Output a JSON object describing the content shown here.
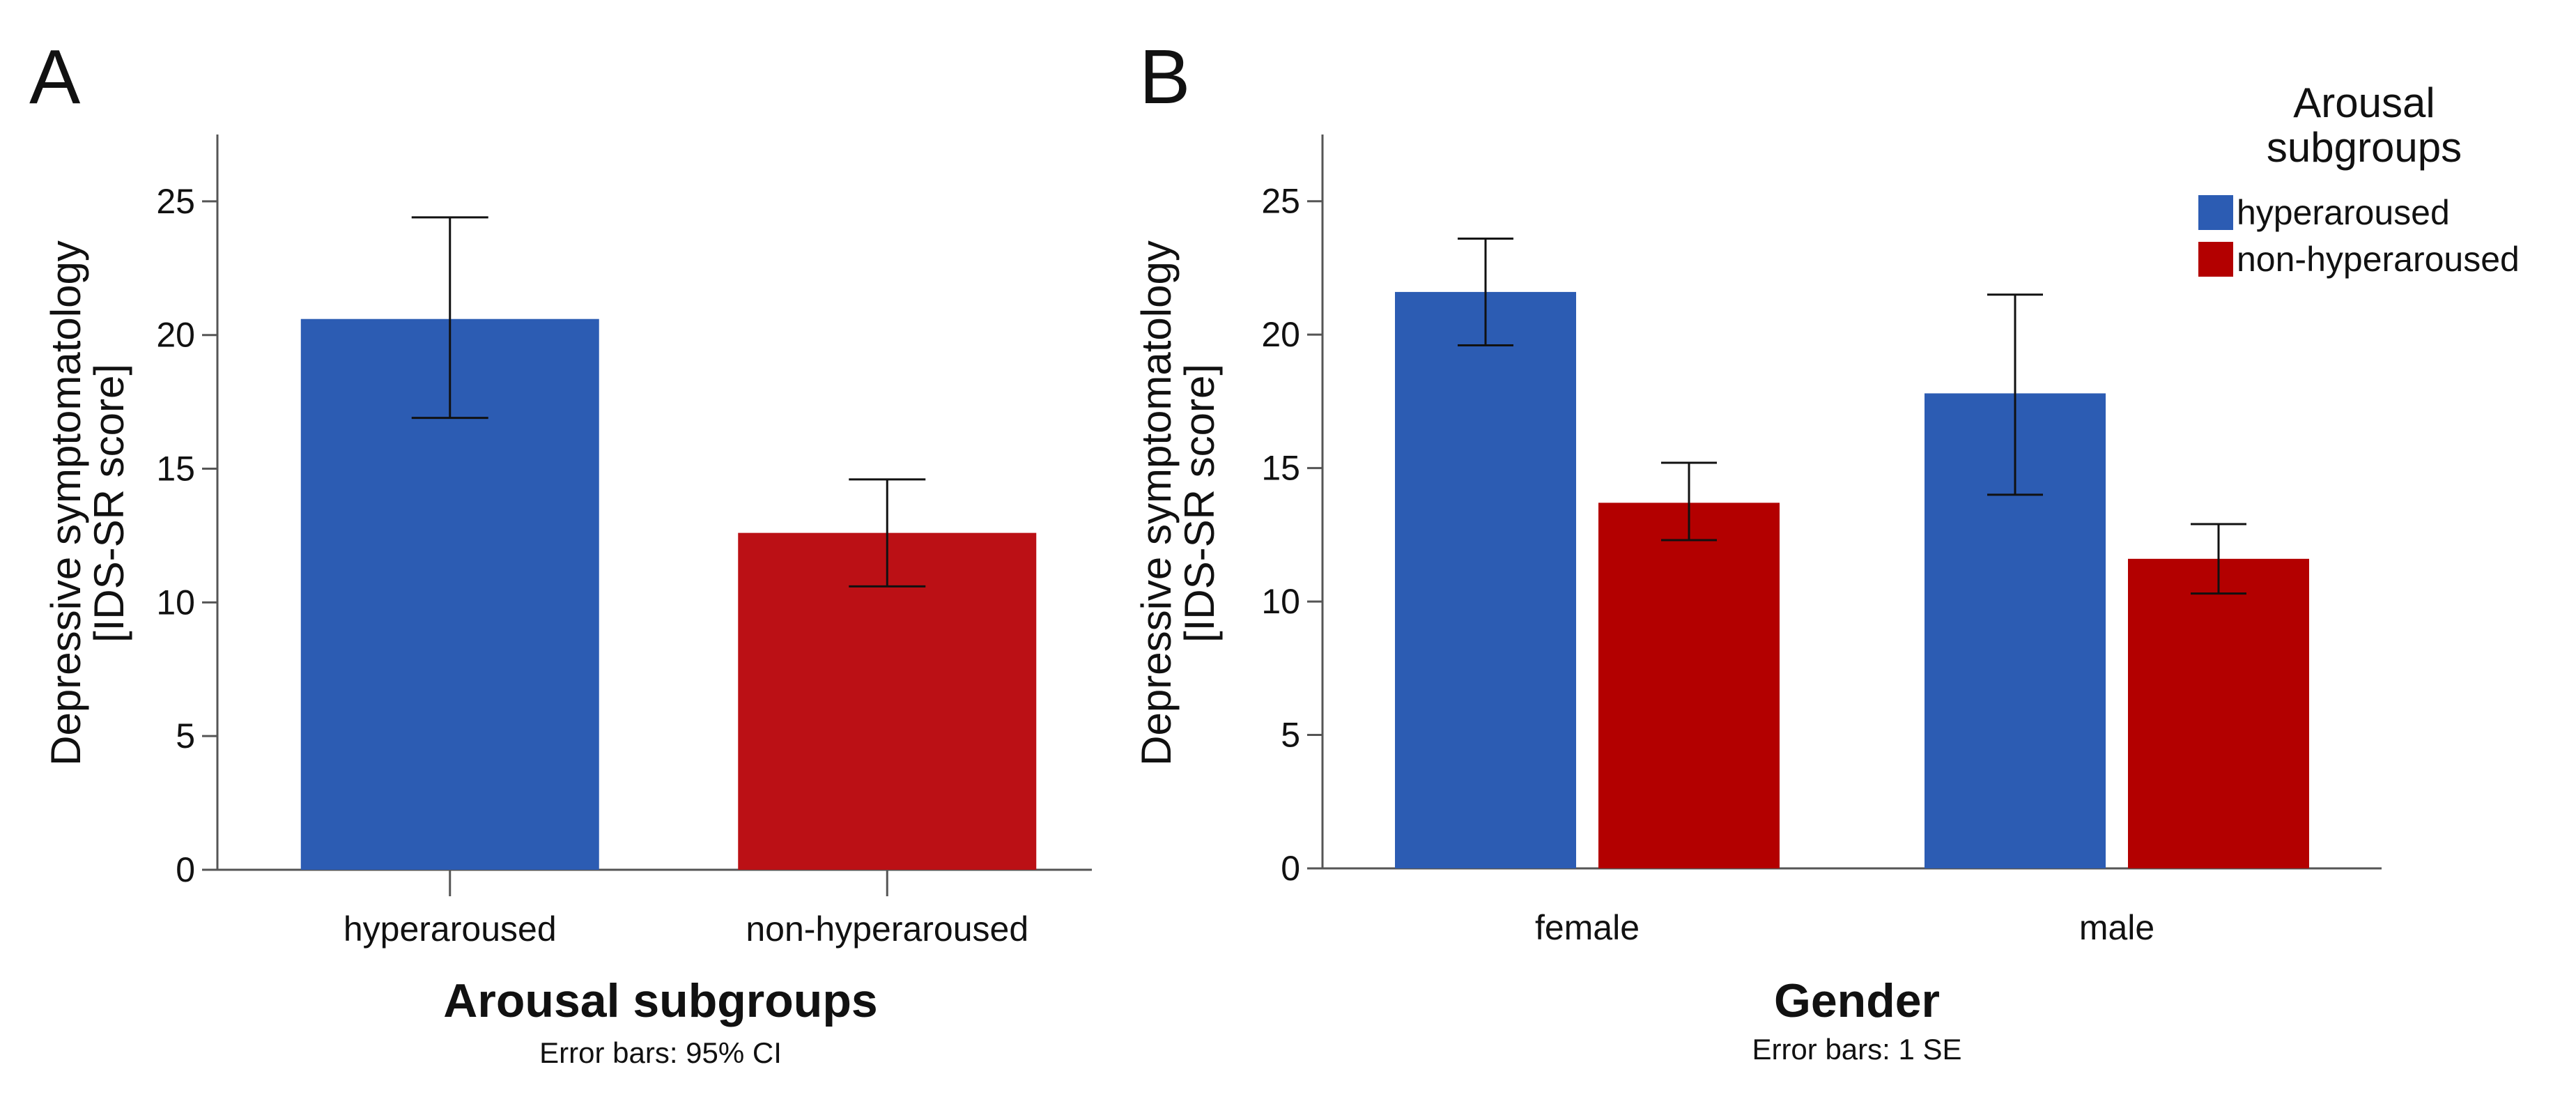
{
  "chart_data": [
    {
      "type": "bar",
      "panel": "A",
      "categories": [
        "hyperaroused",
        "non-hyperaroused"
      ],
      "series": [
        {
          "values": [
            20.6,
            12.6
          ],
          "error_low": [
            16.9,
            10.6
          ],
          "error_high": [
            24.4,
            14.6
          ]
        }
      ],
      "xlabel": "Arousal subgroups",
      "ylabel_lines": [
        "Depressive symptomatology",
        "[IDS-SR score]"
      ],
      "note": "Error bars: 95% CI",
      "ylim": [
        0,
        27.5
      ],
      "yticks": [
        0,
        5,
        10,
        15,
        20,
        25
      ],
      "grid": false,
      "colors": [
        "#2c5cb3",
        "#bb1015"
      ]
    },
    {
      "type": "bar",
      "panel": "B",
      "categories": [
        "female",
        "male"
      ],
      "series": [
        {
          "name": "hyperaroused",
          "color": "#2c5cb3",
          "values": [
            21.6,
            17.8
          ],
          "error_low": [
            19.6,
            14.0
          ],
          "error_high": [
            23.6,
            21.5
          ]
        },
        {
          "name": "non-hyperaroused",
          "color": "#b30000",
          "values": [
            13.7,
            11.6
          ],
          "error_low": [
            12.3,
            10.3
          ],
          "error_high": [
            15.2,
            12.9
          ]
        }
      ],
      "xlabel": "Gender",
      "ylabel_lines": [
        "Depressive symptomatology",
        "[IDS-SR score]"
      ],
      "note": "Error bars: 1 SE",
      "ylim": [
        0,
        27.5
      ],
      "yticks": [
        0,
        5,
        10,
        15,
        20,
        25
      ],
      "grid": false,
      "legend": {
        "title_lines": [
          "Arousal",
          "subgroups"
        ],
        "position": "top-right"
      }
    }
  ]
}
